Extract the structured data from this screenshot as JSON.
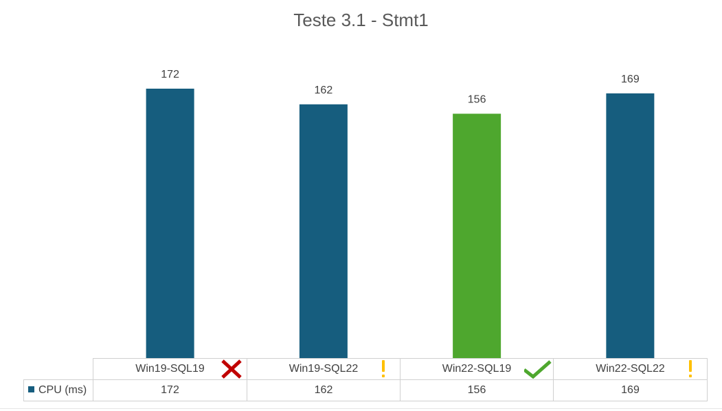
{
  "chart_data": {
    "type": "bar",
    "title": "Teste 3.1 - Stmt1",
    "categories": [
      "Win19-SQL19",
      "Win19-SQL22",
      "Win22-SQL19",
      "Win22-SQL22"
    ],
    "series": [
      {
        "name": "CPU (ms)",
        "values": [
          172,
          162,
          156,
          169
        ],
        "color": "#165d7e",
        "point_colors": [
          "#165d7e",
          "#165d7e",
          "#4ea72e",
          "#165d7e"
        ]
      }
    ],
    "data_labels": true,
    "data_table": true,
    "status_icons": [
      "x-icon",
      "exclamation-icon",
      "check-icon",
      "exclamation-icon"
    ],
    "status_colors": {
      "x": "#c00000",
      "warning": "#ffc000",
      "check": "#4ea72e"
    }
  }
}
